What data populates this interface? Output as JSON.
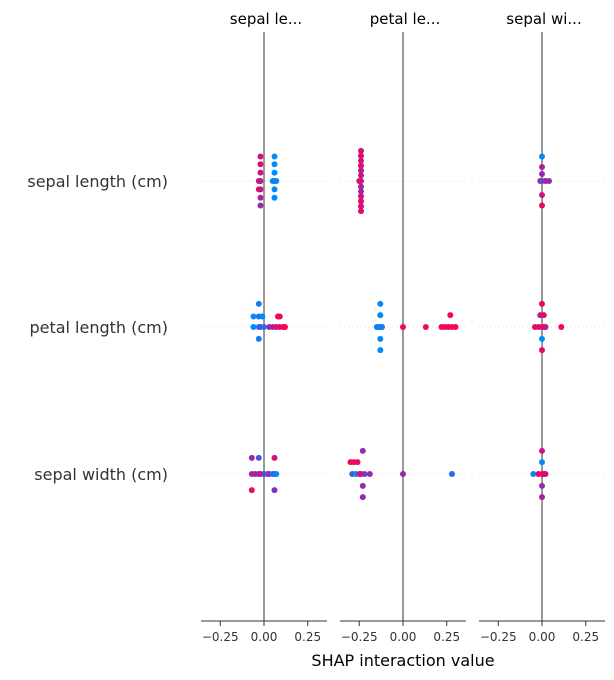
{
  "chart_data": {
    "type": "scatter",
    "subtype": "shap-interaction-summary",
    "xlabel": "SHAP interaction value",
    "xlim": [
      -0.36,
      0.36
    ],
    "xticks": [
      -0.25,
      0.0,
      0.25
    ],
    "xtick_labels": [
      "−0.25",
      "0.00",
      "0.25"
    ],
    "zero_line": true,
    "grid": false,
    "features": [
      "sepal length (cm)",
      "petal length (cm)",
      "sepal width (cm)"
    ],
    "column_titles": [
      "sepal le...",
      "petal le...",
      "sepal wi..."
    ],
    "color_scale": {
      "low": "#008bfb",
      "mid": "#7b34c2",
      "high": "#ff0052"
    },
    "point_color": "#ff0052",
    "panels": [
      {
        "column": "sepal le...",
        "rows": [
          {
            "feature": "sepal length (cm)",
            "points": [
              {
                "x": -0.02,
                "y": 0.35,
                "c": 0.8
              },
              {
                "x": 0.06,
                "y": 0.35,
                "c": 0.0
              },
              {
                "x": -0.02,
                "y": 0.24,
                "c": 0.9
              },
              {
                "x": 0.06,
                "y": 0.24,
                "c": 0.0
              },
              {
                "x": -0.02,
                "y": 0.12,
                "c": 0.8
              },
              {
                "x": 0.06,
                "y": 0.12,
                "c": 0.0
              },
              {
                "x": -0.03,
                "y": 0.0,
                "c": 0.9
              },
              {
                "x": -0.02,
                "y": 0.0,
                "c": 0.7
              },
              {
                "x": 0.05,
                "y": 0.0,
                "c": 0.0
              },
              {
                "x": 0.06,
                "y": 0.0,
                "c": 0.1
              },
              {
                "x": 0.07,
                "y": 0.0,
                "c": 0.0
              },
              {
                "x": -0.03,
                "y": -0.12,
                "c": 0.9
              },
              {
                "x": -0.02,
                "y": -0.12,
                "c": 0.8
              },
              {
                "x": 0.06,
                "y": -0.12,
                "c": 0.0
              },
              {
                "x": -0.02,
                "y": -0.24,
                "c": 0.7
              },
              {
                "x": 0.06,
                "y": -0.24,
                "c": 0.0
              },
              {
                "x": -0.02,
                "y": -0.35,
                "c": 0.6
              }
            ]
          },
          {
            "feature": "petal length (cm)",
            "points": [
              {
                "x": -0.03,
                "y": 0.33,
                "c": 0.1
              },
              {
                "x": -0.06,
                "y": 0.15,
                "c": 0.0
              },
              {
                "x": -0.03,
                "y": 0.15,
                "c": 0.1
              },
              {
                "x": -0.01,
                "y": 0.15,
                "c": 0.0
              },
              {
                "x": 0.08,
                "y": 0.15,
                "c": 0.9
              },
              {
                "x": 0.09,
                "y": 0.15,
                "c": 0.95
              },
              {
                "x": -0.06,
                "y": 0.0,
                "c": 0.0
              },
              {
                "x": -0.03,
                "y": 0.0,
                "c": 0.1
              },
              {
                "x": -0.02,
                "y": 0.0,
                "c": 0.3
              },
              {
                "x": 0.0,
                "y": 0.0,
                "c": 0.2
              },
              {
                "x": 0.03,
                "y": 0.0,
                "c": 0.6
              },
              {
                "x": 0.05,
                "y": 0.0,
                "c": 0.7
              },
              {
                "x": 0.07,
                "y": 0.0,
                "c": 0.8
              },
              {
                "x": 0.09,
                "y": 0.0,
                "c": 0.9
              },
              {
                "x": 0.11,
                "y": 0.0,
                "c": 0.95
              },
              {
                "x": 0.12,
                "y": 0.0,
                "c": 1.0
              },
              {
                "x": -0.03,
                "y": -0.17,
                "c": 0.1
              }
            ]
          },
          {
            "feature": "sepal width (cm)",
            "points": [
              {
                "x": -0.07,
                "y": 0.23,
                "c": 0.6
              },
              {
                "x": -0.03,
                "y": 0.23,
                "c": 0.3
              },
              {
                "x": 0.06,
                "y": 0.23,
                "c": 0.8
              },
              {
                "x": -0.07,
                "y": 0.0,
                "c": 0.6
              },
              {
                "x": -0.05,
                "y": 0.0,
                "c": 0.7
              },
              {
                "x": -0.03,
                "y": 0.0,
                "c": 0.5
              },
              {
                "x": -0.02,
                "y": 0.0,
                "c": 0.8
              },
              {
                "x": 0.0,
                "y": 0.0,
                "c": 0.4
              },
              {
                "x": 0.02,
                "y": 0.0,
                "c": 0.2
              },
              {
                "x": 0.03,
                "y": 0.0,
                "c": 0.6
              },
              {
                "x": 0.05,
                "y": 0.0,
                "c": 0.1
              },
              {
                "x": 0.06,
                "y": 0.0,
                "c": 0.3
              },
              {
                "x": 0.07,
                "y": 0.0,
                "c": 0.0
              },
              {
                "x": -0.07,
                "y": -0.23,
                "c": 0.9
              },
              {
                "x": 0.06,
                "y": -0.23,
                "c": 0.5
              }
            ]
          }
        ]
      },
      {
        "column": "petal le...",
        "rows": [
          {
            "feature": "sepal length (cm)",
            "points": [
              {
                "x": -0.24,
                "y": 0.43,
                "c": 0.8
              },
              {
                "x": -0.24,
                "y": 0.36,
                "c": 0.9
              },
              {
                "x": -0.24,
                "y": 0.29,
                "c": 0.8
              },
              {
                "x": -0.24,
                "y": 0.22,
                "c": 0.9
              },
              {
                "x": -0.24,
                "y": 0.15,
                "c": 0.7
              },
              {
                "x": -0.24,
                "y": 0.08,
                "c": 0.8
              },
              {
                "x": -0.25,
                "y": 0.0,
                "c": 0.9
              },
              {
                "x": -0.24,
                "y": 0.0,
                "c": 0.8
              },
              {
                "x": -0.24,
                "y": -0.08,
                "c": 0.7
              },
              {
                "x": -0.24,
                "y": -0.15,
                "c": 0.6
              },
              {
                "x": -0.24,
                "y": -0.22,
                "c": 0.8
              },
              {
                "x": -0.24,
                "y": -0.29,
                "c": 0.9
              },
              {
                "x": -0.24,
                "y": -0.36,
                "c": 0.8
              },
              {
                "x": -0.24,
                "y": -0.43,
                "c": 0.9
              }
            ]
          },
          {
            "feature": "petal length (cm)",
            "points": [
              {
                "x": -0.13,
                "y": 0.33,
                "c": 0.0
              },
              {
                "x": -0.13,
                "y": 0.17,
                "c": 0.0
              },
              {
                "x": 0.27,
                "y": 0.17,
                "c": 1.0
              },
              {
                "x": -0.15,
                "y": 0.0,
                "c": 0.0
              },
              {
                "x": -0.14,
                "y": 0.0,
                "c": 0.1
              },
              {
                "x": -0.13,
                "y": 0.0,
                "c": 0.0
              },
              {
                "x": -0.12,
                "y": 0.0,
                "c": 0.1
              },
              {
                "x": 0.0,
                "y": 0.0,
                "c": 0.9
              },
              {
                "x": 0.13,
                "y": 0.0,
                "c": 0.9
              },
              {
                "x": 0.22,
                "y": 0.0,
                "c": 1.0
              },
              {
                "x": 0.24,
                "y": 0.0,
                "c": 0.9
              },
              {
                "x": 0.26,
                "y": 0.0,
                "c": 1.0
              },
              {
                "x": 0.28,
                "y": 0.0,
                "c": 0.9
              },
              {
                "x": 0.3,
                "y": 0.0,
                "c": 1.0
              },
              {
                "x": -0.13,
                "y": -0.17,
                "c": 0.0
              },
              {
                "x": -0.13,
                "y": -0.33,
                "c": 0.0
              }
            ]
          },
          {
            "feature": "sepal width (cm)",
            "points": [
              {
                "x": -0.23,
                "y": 0.33,
                "c": 0.6
              },
              {
                "x": -0.3,
                "y": 0.17,
                "c": 0.9
              },
              {
                "x": -0.28,
                "y": 0.17,
                "c": 1.0
              },
              {
                "x": -0.26,
                "y": 0.17,
                "c": 0.9
              },
              {
                "x": -0.29,
                "y": 0.0,
                "c": 0.3
              },
              {
                "x": -0.27,
                "y": 0.0,
                "c": 0.0
              },
              {
                "x": -0.25,
                "y": 0.0,
                "c": 0.7
              },
              {
                "x": -0.24,
                "y": 0.0,
                "c": 0.9
              },
              {
                "x": -0.22,
                "y": 0.0,
                "c": 0.5
              },
              {
                "x": -0.19,
                "y": 0.0,
                "c": 0.6
              },
              {
                "x": 0.0,
                "y": 0.0,
                "c": 0.6
              },
              {
                "x": 0.28,
                "y": 0.0,
                "c": 0.2
              },
              {
                "x": -0.23,
                "y": -0.17,
                "c": 0.6
              },
              {
                "x": -0.23,
                "y": -0.33,
                "c": 0.6
              }
            ]
          }
        ]
      },
      {
        "column": "sepal wi...",
        "rows": [
          {
            "feature": "sepal length (cm)",
            "points": [
              {
                "x": 0.0,
                "y": 0.35,
                "c": 0.0
              },
              {
                "x": 0.0,
                "y": 0.2,
                "c": 0.7
              },
              {
                "x": 0.0,
                "y": 0.1,
                "c": 0.6
              },
              {
                "x": -0.01,
                "y": 0.0,
                "c": 0.8
              },
              {
                "x": 0.0,
                "y": 0.0,
                "c": 0.3
              },
              {
                "x": 0.02,
                "y": 0.0,
                "c": 0.7
              },
              {
                "x": 0.04,
                "y": 0.0,
                "c": 0.6
              },
              {
                "x": 0.0,
                "y": -0.2,
                "c": 0.8
              },
              {
                "x": 0.0,
                "y": -0.35,
                "c": 0.9
              }
            ]
          },
          {
            "feature": "petal length (cm)",
            "points": [
              {
                "x": 0.0,
                "y": 0.33,
                "c": 0.9
              },
              {
                "x": -0.01,
                "y": 0.17,
                "c": 0.7
              },
              {
                "x": 0.01,
                "y": 0.17,
                "c": 0.9
              },
              {
                "x": -0.04,
                "y": 0.0,
                "c": 0.9
              },
              {
                "x": -0.02,
                "y": 0.0,
                "c": 0.8
              },
              {
                "x": 0.0,
                "y": 0.0,
                "c": 0.9
              },
              {
                "x": 0.01,
                "y": 0.0,
                "c": 1.0
              },
              {
                "x": 0.02,
                "y": 0.0,
                "c": 0.7
              },
              {
                "x": 0.11,
                "y": 0.0,
                "c": 0.95
              },
              {
                "x": 0.0,
                "y": -0.17,
                "c": 0.0
              },
              {
                "x": 0.0,
                "y": -0.33,
                "c": 0.9
              }
            ]
          },
          {
            "feature": "sepal width (cm)",
            "points": [
              {
                "x": 0.0,
                "y": 0.33,
                "c": 0.8
              },
              {
                "x": 0.0,
                "y": 0.17,
                "c": 0.0
              },
              {
                "x": -0.05,
                "y": 0.0,
                "c": 0.0
              },
              {
                "x": -0.02,
                "y": 0.0,
                "c": 0.9
              },
              {
                "x": 0.0,
                "y": 0.0,
                "c": 1.0
              },
              {
                "x": 0.01,
                "y": 0.0,
                "c": 0.9
              },
              {
                "x": 0.02,
                "y": 0.0,
                "c": 0.8
              },
              {
                "x": 0.0,
                "y": -0.17,
                "c": 0.6
              },
              {
                "x": 0.0,
                "y": -0.33,
                "c": 0.7
              }
            ]
          }
        ]
      }
    ]
  }
}
